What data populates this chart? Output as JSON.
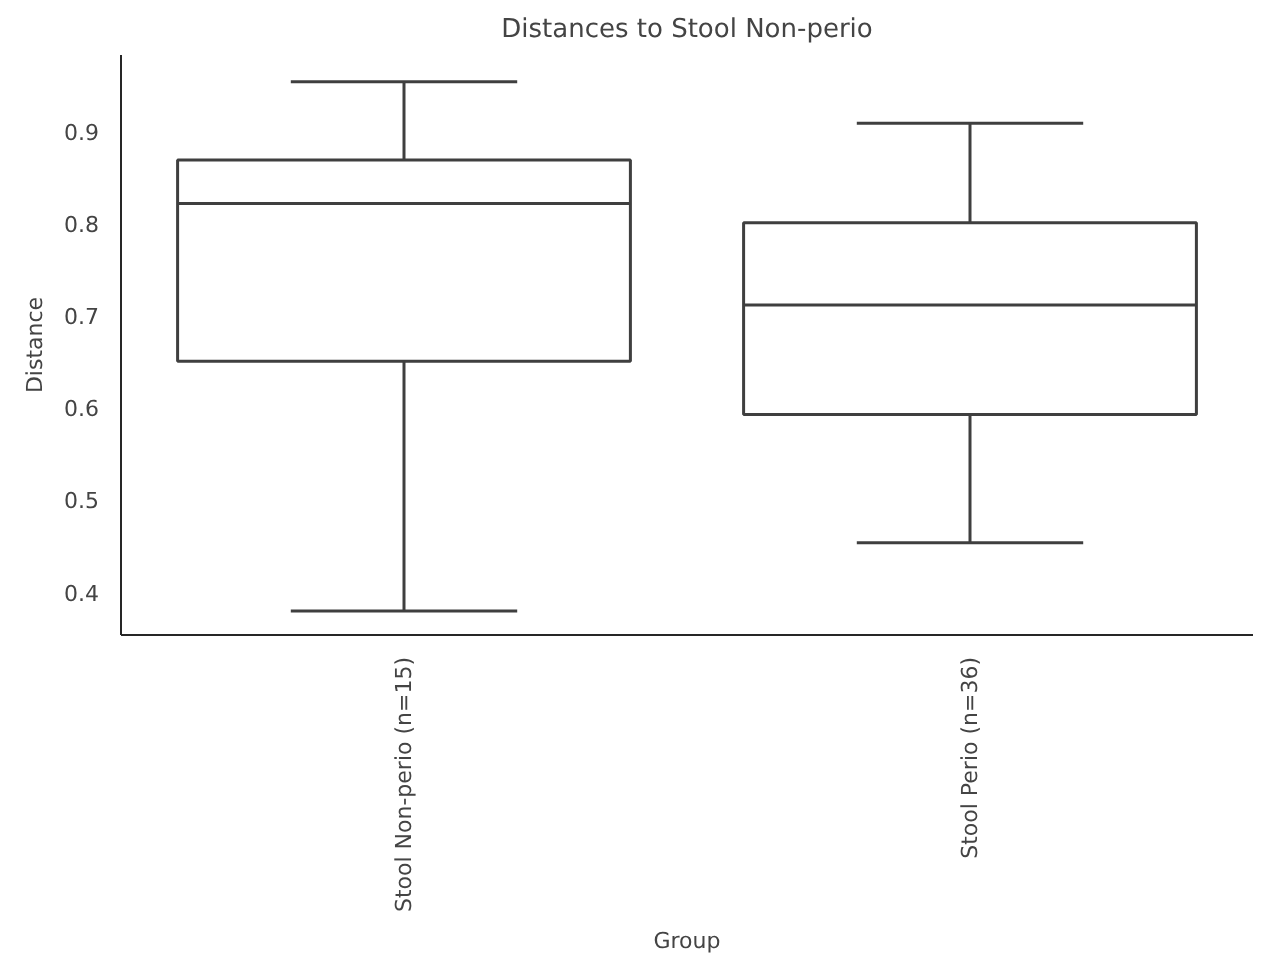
{
  "chart_data": {
    "type": "box",
    "title": "Distances to Stool Non-perio",
    "xlabel": "Group",
    "ylabel": "Distance",
    "categories": [
      "Stool Non-perio (n=15)",
      "Stool Perio (n=36)"
    ],
    "boxes": [
      {
        "low": 0.379,
        "q1": 0.65,
        "median": 0.821,
        "q3": 0.868,
        "high": 0.953
      },
      {
        "low": 0.453,
        "q1": 0.592,
        "median": 0.711,
        "q3": 0.8,
        "high": 0.908
      }
    ],
    "color": "#ffffff",
    "ylim": [
      0.353,
      0.982
    ],
    "yticks": [
      0.4,
      0.5,
      0.6,
      0.7,
      0.8,
      0.9
    ],
    "grid": false
  }
}
